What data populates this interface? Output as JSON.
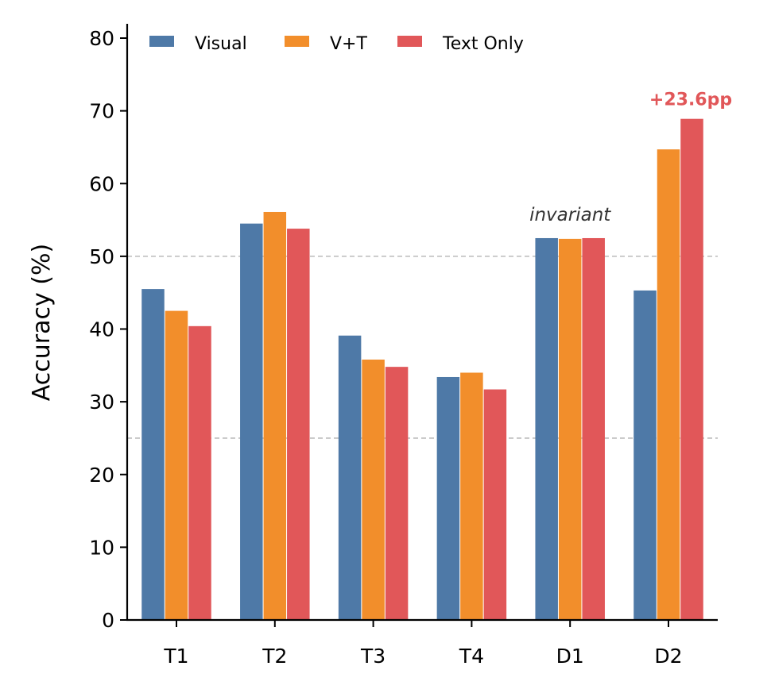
{
  "chart_data": {
    "type": "bar",
    "title": "",
    "xlabel": "",
    "ylabel": "Accuracy (%)",
    "ylim": [
      0,
      82
    ],
    "yticks": [
      0,
      10,
      20,
      30,
      40,
      50,
      60,
      70,
      80
    ],
    "categories": [
      "T1",
      "T2",
      "T3",
      "T4",
      "D1",
      "D2"
    ],
    "series": [
      {
        "name": "Visual",
        "color": "#4e79a7",
        "values": [
          45.5,
          54.5,
          39.1,
          33.4,
          52.5,
          45.3
        ]
      },
      {
        "name": "V+T",
        "color": "#f28e2b",
        "values": [
          42.5,
          56.1,
          35.8,
          34.0,
          52.4,
          64.7
        ]
      },
      {
        "name": "Text Only",
        "color": "#e15759",
        "values": [
          40.4,
          53.8,
          34.8,
          31.7,
          52.5,
          68.9
        ]
      }
    ],
    "reference_lines": [
      25,
      50
    ],
    "grid": false,
    "legend_placement": "top-left",
    "annotations": [
      {
        "text": "invariant",
        "category": "D1",
        "style": "italic",
        "color": "#333333"
      },
      {
        "text": "+23.6pp",
        "category": "D2",
        "style": "bold",
        "color": "#e15759"
      }
    ]
  }
}
